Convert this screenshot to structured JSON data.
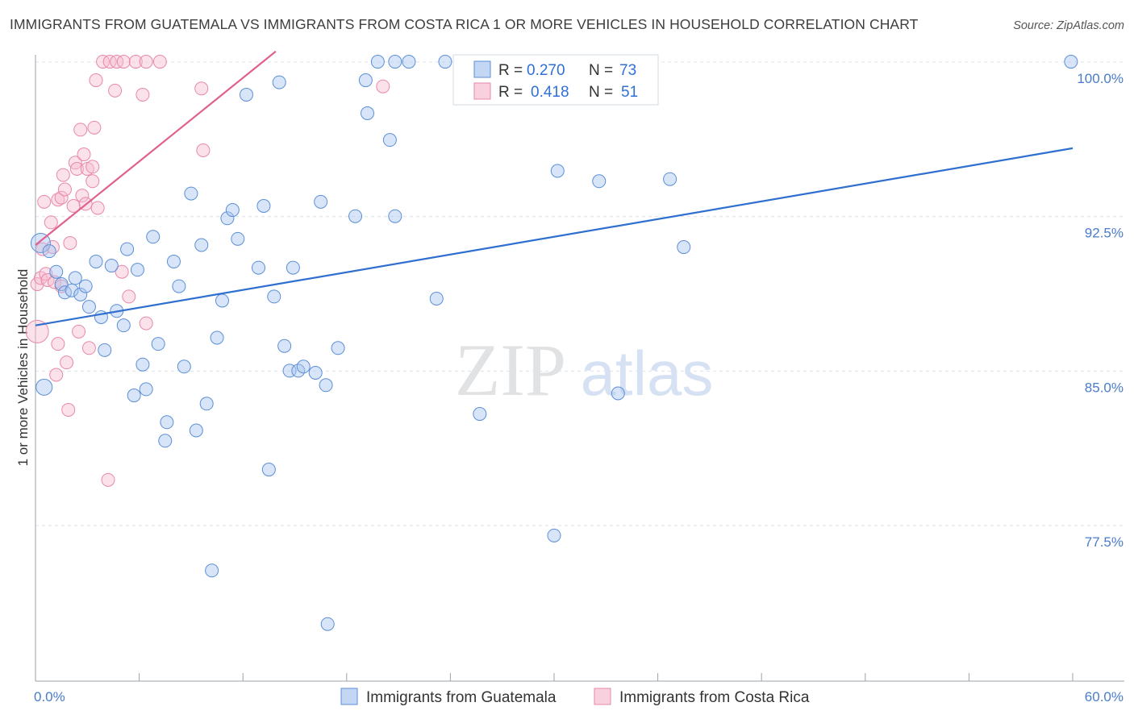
{
  "title": "IMMIGRANTS FROM GUATEMALA VS IMMIGRANTS FROM COSTA RICA 1 OR MORE VEHICLES IN HOUSEHOLD CORRELATION CHART",
  "source": "Source: ZipAtlas.com",
  "watermark": {
    "zip": "ZIP",
    "atlas": "atlas"
  },
  "legend": {
    "r_label": "R =",
    "n_label": "N =",
    "rows": [
      {
        "r": "0.270",
        "n": "73"
      },
      {
        "r": "0.418",
        "n": "51"
      }
    ]
  },
  "colors": {
    "guatemala_fill": "#a9c6ef",
    "guatemala_stroke": "#5b8fd6",
    "guatemala_line": "#2e6fcf",
    "costarica_fill": "#f6bcd0",
    "costarica_stroke": "#e888aa",
    "costarica_line": "#e0608f",
    "grid": "#dde3ea",
    "tick": "#4a7cc9"
  },
  "chart_data": {
    "type": "scatter",
    "title": "IMMIGRANTS FROM GUATEMALA VS IMMIGRANTS FROM COSTA RICA 1 OR MORE VEHICLES IN HOUSEHOLD CORRELATION CHART",
    "xlabel": "",
    "ylabel": "1 or more Vehicles in Household",
    "xlim": [
      0,
      60
    ],
    "ylim": [
      70.5,
      101.5
    ],
    "x_tick_labels": [
      {
        "value": 0,
        "label": "0.0%"
      },
      {
        "value": 60,
        "label": "60.0%"
      }
    ],
    "y_ticks": [
      {
        "value": 100,
        "label": "100.0%"
      },
      {
        "value": 92.5,
        "label": "92.5%"
      },
      {
        "value": 85,
        "label": "85.0%"
      },
      {
        "value": 77.5,
        "label": "77.5%"
      }
    ],
    "x_minor_ticks": [
      0,
      6,
      12,
      18,
      24,
      30,
      36,
      42,
      48,
      54,
      60
    ],
    "legend_position": "top-center",
    "series": [
      {
        "name": "Immigrants from Guatemala",
        "r": 0.27,
        "n": 73,
        "trend": {
          "x": [
            0,
            60
          ],
          "y": [
            88.0,
            96.6
          ]
        },
        "points": [
          {
            "x": 0.3,
            "y": 92.0,
            "s": 24
          },
          {
            "x": 0.5,
            "y": 85.0,
            "s": 20
          },
          {
            "x": 0.8,
            "y": 91.6,
            "s": 16
          },
          {
            "x": 1.2,
            "y": 90.6,
            "s": 16
          },
          {
            "x": 1.5,
            "y": 90.0,
            "s": 16
          },
          {
            "x": 1.7,
            "y": 89.6,
            "s": 16
          },
          {
            "x": 2.1,
            "y": 89.7,
            "s": 16
          },
          {
            "x": 2.3,
            "y": 90.3,
            "s": 16
          },
          {
            "x": 2.6,
            "y": 89.5,
            "s": 16
          },
          {
            "x": 2.9,
            "y": 89.9,
            "s": 16
          },
          {
            "x": 3.1,
            "y": 88.9,
            "s": 16
          },
          {
            "x": 3.5,
            "y": 91.1,
            "s": 16
          },
          {
            "x": 3.8,
            "y": 88.4,
            "s": 16
          },
          {
            "x": 4.0,
            "y": 86.8,
            "s": 16
          },
          {
            "x": 4.4,
            "y": 90.9,
            "s": 16
          },
          {
            "x": 4.7,
            "y": 88.7,
            "s": 16
          },
          {
            "x": 5.1,
            "y": 88.0,
            "s": 16
          },
          {
            "x": 5.3,
            "y": 91.7,
            "s": 16
          },
          {
            "x": 5.7,
            "y": 84.6,
            "s": 16
          },
          {
            "x": 5.9,
            "y": 90.7,
            "s": 16
          },
          {
            "x": 6.2,
            "y": 86.1,
            "s": 16
          },
          {
            "x": 6.4,
            "y": 84.9,
            "s": 16
          },
          {
            "x": 6.8,
            "y": 92.3,
            "s": 16
          },
          {
            "x": 7.1,
            "y": 87.1,
            "s": 16
          },
          {
            "x": 7.6,
            "y": 83.3,
            "s": 16
          },
          {
            "x": 7.5,
            "y": 82.4,
            "s": 16
          },
          {
            "x": 8.0,
            "y": 91.1,
            "s": 16
          },
          {
            "x": 8.3,
            "y": 89.9,
            "s": 16
          },
          {
            "x": 8.6,
            "y": 86.0,
            "s": 16
          },
          {
            "x": 9.0,
            "y": 94.4,
            "s": 16
          },
          {
            "x": 9.3,
            "y": 82.9,
            "s": 16
          },
          {
            "x": 9.6,
            "y": 91.9,
            "s": 16
          },
          {
            "x": 9.9,
            "y": 84.2,
            "s": 16
          },
          {
            "x": 10.2,
            "y": 76.1,
            "s": 16
          },
          {
            "x": 10.5,
            "y": 87.4,
            "s": 16
          },
          {
            "x": 10.8,
            "y": 89.2,
            "s": 16
          },
          {
            "x": 11.1,
            "y": 93.2,
            "s": 16
          },
          {
            "x": 11.4,
            "y": 93.6,
            "s": 16
          },
          {
            "x": 11.7,
            "y": 92.2,
            "s": 16
          },
          {
            "x": 12.2,
            "y": 99.2,
            "s": 16
          },
          {
            "x": 12.9,
            "y": 90.8,
            "s": 16
          },
          {
            "x": 13.2,
            "y": 93.8,
            "s": 16
          },
          {
            "x": 13.5,
            "y": 81.0,
            "s": 16
          },
          {
            "x": 13.8,
            "y": 89.4,
            "s": 16
          },
          {
            "x": 14.1,
            "y": 99.8,
            "s": 16
          },
          {
            "x": 14.4,
            "y": 87.0,
            "s": 16
          },
          {
            "x": 14.7,
            "y": 85.8,
            "s": 16
          },
          {
            "x": 14.9,
            "y": 90.8,
            "s": 16
          },
          {
            "x": 15.2,
            "y": 85.8,
            "s": 16
          },
          {
            "x": 15.5,
            "y": 86.0,
            "s": 16
          },
          {
            "x": 16.2,
            "y": 85.7,
            "s": 16
          },
          {
            "x": 16.5,
            "y": 94.0,
            "s": 16
          },
          {
            "x": 16.8,
            "y": 85.1,
            "s": 16
          },
          {
            "x": 16.9,
            "y": 73.5,
            "s": 16
          },
          {
            "x": 17.5,
            "y": 86.9,
            "s": 16
          },
          {
            "x": 18.5,
            "y": 93.3,
            "s": 16
          },
          {
            "x": 19.1,
            "y": 99.9,
            "s": 16
          },
          {
            "x": 19.2,
            "y": 98.3,
            "s": 16
          },
          {
            "x": 19.8,
            "y": 100.8,
            "s": 16
          },
          {
            "x": 20.5,
            "y": 97.0,
            "s": 16
          },
          {
            "x": 20.8,
            "y": 93.3,
            "s": 16
          },
          {
            "x": 20.8,
            "y": 100.8,
            "s": 16
          },
          {
            "x": 21.6,
            "y": 100.8,
            "s": 16
          },
          {
            "x": 23.2,
            "y": 89.3,
            "s": 16
          },
          {
            "x": 23.7,
            "y": 100.8,
            "s": 16
          },
          {
            "x": 25.7,
            "y": 83.7,
            "s": 16
          },
          {
            "x": 30.0,
            "y": 77.8,
            "s": 16
          },
          {
            "x": 30.2,
            "y": 95.5,
            "s": 16
          },
          {
            "x": 32.6,
            "y": 95.0,
            "s": 16
          },
          {
            "x": 33.7,
            "y": 84.7,
            "s": 16
          },
          {
            "x": 36.7,
            "y": 95.1,
            "s": 16
          },
          {
            "x": 37.5,
            "y": 91.8,
            "s": 16
          },
          {
            "x": 59.9,
            "y": 100.8,
            "s": 16
          }
        ]
      },
      {
        "name": "Immigrants from Costa Rica",
        "r": 0.418,
        "n": 51,
        "trend": {
          "x": [
            0,
            13.9
          ],
          "y": [
            91.9,
            101.3
          ]
        },
        "points": [
          {
            "x": 0.1,
            "y": 87.7,
            "s": 28
          },
          {
            "x": 0.1,
            "y": 90.0,
            "s": 16
          },
          {
            "x": 0.3,
            "y": 90.3,
            "s": 16
          },
          {
            "x": 0.4,
            "y": 91.7,
            "s": 16
          },
          {
            "x": 0.5,
            "y": 94.0,
            "s": 16
          },
          {
            "x": 0.6,
            "y": 90.5,
            "s": 16
          },
          {
            "x": 0.7,
            "y": 90.2,
            "s": 16
          },
          {
            "x": 0.9,
            "y": 93.0,
            "s": 16
          },
          {
            "x": 1.0,
            "y": 91.8,
            "s": 16
          },
          {
            "x": 1.1,
            "y": 90.1,
            "s": 16
          },
          {
            "x": 1.2,
            "y": 85.6,
            "s": 16
          },
          {
            "x": 1.3,
            "y": 87.1,
            "s": 16
          },
          {
            "x": 1.3,
            "y": 94.1,
            "s": 16
          },
          {
            "x": 1.5,
            "y": 94.2,
            "s": 16
          },
          {
            "x": 1.5,
            "y": 89.9,
            "s": 16
          },
          {
            "x": 1.6,
            "y": 95.3,
            "s": 16
          },
          {
            "x": 1.7,
            "y": 94.6,
            "s": 16
          },
          {
            "x": 1.8,
            "y": 86.2,
            "s": 16
          },
          {
            "x": 1.9,
            "y": 83.9,
            "s": 16
          },
          {
            "x": 2.0,
            "y": 92.0,
            "s": 16
          },
          {
            "x": 2.2,
            "y": 93.8,
            "s": 16
          },
          {
            "x": 2.3,
            "y": 95.9,
            "s": 16
          },
          {
            "x": 2.4,
            "y": 95.6,
            "s": 16
          },
          {
            "x": 2.5,
            "y": 87.7,
            "s": 16
          },
          {
            "x": 2.6,
            "y": 97.5,
            "s": 16
          },
          {
            "x": 2.7,
            "y": 94.3,
            "s": 16
          },
          {
            "x": 2.8,
            "y": 96.3,
            "s": 16
          },
          {
            "x": 2.9,
            "y": 93.9,
            "s": 16
          },
          {
            "x": 3.0,
            "y": 95.6,
            "s": 16
          },
          {
            "x": 3.1,
            "y": 86.9,
            "s": 16
          },
          {
            "x": 3.3,
            "y": 95.7,
            "s": 16
          },
          {
            "x": 3.3,
            "y": 95.0,
            "s": 16
          },
          {
            "x": 3.4,
            "y": 97.6,
            "s": 16
          },
          {
            "x": 3.5,
            "y": 99.9,
            "s": 16
          },
          {
            "x": 3.6,
            "y": 93.7,
            "s": 16
          },
          {
            "x": 3.9,
            "y": 100.8,
            "s": 16
          },
          {
            "x": 4.2,
            "y": 80.5,
            "s": 16
          },
          {
            "x": 4.3,
            "y": 100.8,
            "s": 16
          },
          {
            "x": 4.6,
            "y": 99.4,
            "s": 16
          },
          {
            "x": 4.7,
            "y": 100.8,
            "s": 16
          },
          {
            "x": 5.0,
            "y": 90.6,
            "s": 16
          },
          {
            "x": 5.1,
            "y": 100.8,
            "s": 16
          },
          {
            "x": 5.4,
            "y": 89.4,
            "s": 16
          },
          {
            "x": 5.8,
            "y": 100.8,
            "s": 16
          },
          {
            "x": 6.2,
            "y": 99.2,
            "s": 16
          },
          {
            "x": 6.4,
            "y": 100.8,
            "s": 16
          },
          {
            "x": 6.4,
            "y": 88.1,
            "s": 16
          },
          {
            "x": 7.2,
            "y": 100.8,
            "s": 16
          },
          {
            "x": 9.6,
            "y": 99.5,
            "s": 16
          },
          {
            "x": 9.7,
            "y": 96.5,
            "s": 16
          },
          {
            "x": 20.1,
            "y": 99.6,
            "s": 16
          }
        ]
      }
    ]
  },
  "bottom_legend": [
    {
      "label": "Immigrants from Guatemala"
    },
    {
      "label": "Immigrants from Costa Rica"
    }
  ]
}
